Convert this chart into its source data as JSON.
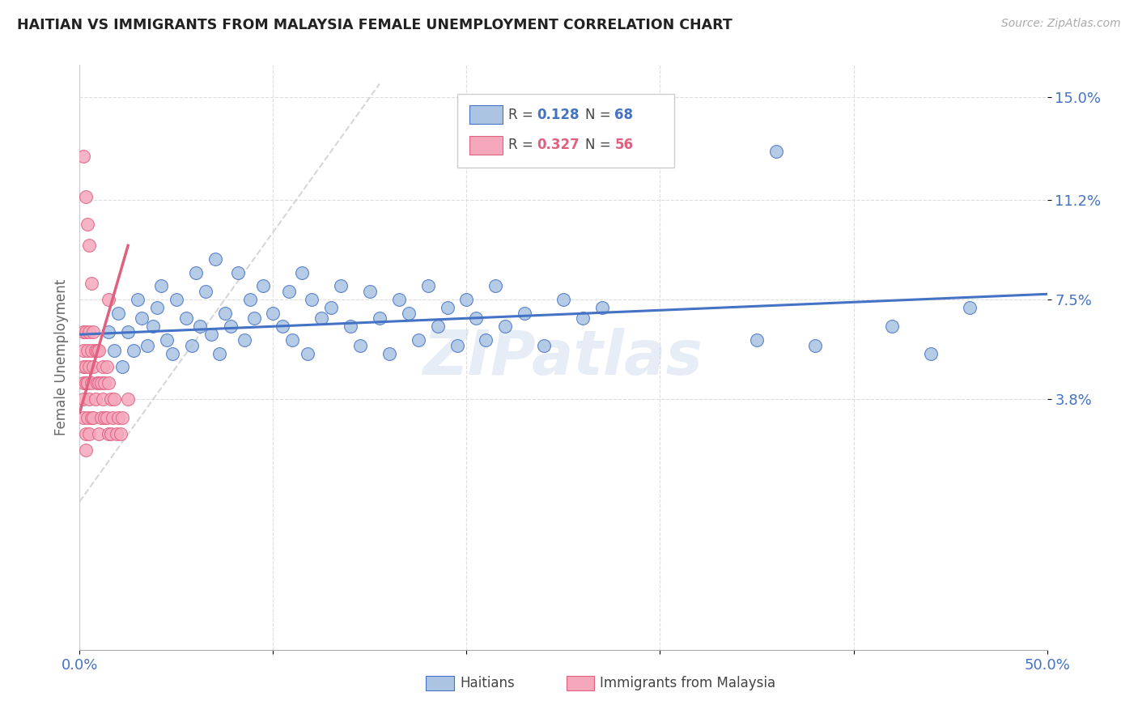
{
  "title": "HAITIAN VS IMMIGRANTS FROM MALAYSIA FEMALE UNEMPLOYMENT CORRELATION CHART",
  "source": "Source: ZipAtlas.com",
  "ylabel": "Female Unemployment",
  "xmin": 0.0,
  "xmax": 0.5,
  "ymin": -0.055,
  "ymax": 0.162,
  "legend_blue_r": "0.128",
  "legend_blue_n": "68",
  "legend_pink_r": "0.327",
  "legend_pink_n": "56",
  "watermark": "ZIPatlas",
  "blue_color": "#aac4e2",
  "pink_color": "#f5a8bc",
  "blue_line_color": "#4472c4",
  "pink_line_color": "#e06080",
  "diag_line_color": "#cccccc",
  "grid_color": "#dddddd",
  "title_color": "#222222",
  "axis_label_color": "#4472c4",
  "ytick_vals": [
    0.038,
    0.075,
    0.112,
    0.15
  ],
  "ytick_labels": [
    "3.8%",
    "7.5%",
    "11.2%",
    "15.0%"
  ],
  "xtick_vals": [
    0.0,
    0.1,
    0.2,
    0.3,
    0.4,
    0.5
  ],
  "xtick_labels": [
    "0.0%",
    "",
    "",
    "",
    "",
    "50.0%"
  ],
  "blue_scatter_x": [
    0.015,
    0.018,
    0.02,
    0.022,
    0.025,
    0.028,
    0.03,
    0.032,
    0.035,
    0.038,
    0.04,
    0.042,
    0.045,
    0.048,
    0.05,
    0.055,
    0.058,
    0.06,
    0.062,
    0.065,
    0.068,
    0.07,
    0.072,
    0.075,
    0.078,
    0.082,
    0.085,
    0.088,
    0.09,
    0.095,
    0.1,
    0.105,
    0.108,
    0.11,
    0.115,
    0.118,
    0.12,
    0.125,
    0.13,
    0.135,
    0.14,
    0.145,
    0.15,
    0.155,
    0.16,
    0.165,
    0.17,
    0.175,
    0.18,
    0.185,
    0.19,
    0.195,
    0.2,
    0.205,
    0.21,
    0.215,
    0.22,
    0.23,
    0.24,
    0.25,
    0.26,
    0.27,
    0.35,
    0.38,
    0.42,
    0.44,
    0.46,
    0.36
  ],
  "blue_scatter_y": [
    0.063,
    0.056,
    0.07,
    0.05,
    0.063,
    0.056,
    0.075,
    0.068,
    0.058,
    0.065,
    0.072,
    0.08,
    0.06,
    0.055,
    0.075,
    0.068,
    0.058,
    0.085,
    0.065,
    0.078,
    0.062,
    0.09,
    0.055,
    0.07,
    0.065,
    0.085,
    0.06,
    0.075,
    0.068,
    0.08,
    0.07,
    0.065,
    0.078,
    0.06,
    0.085,
    0.055,
    0.075,
    0.068,
    0.072,
    0.08,
    0.065,
    0.058,
    0.078,
    0.068,
    0.055,
    0.075,
    0.07,
    0.06,
    0.08,
    0.065,
    0.072,
    0.058,
    0.075,
    0.068,
    0.06,
    0.08,
    0.065,
    0.07,
    0.058,
    0.075,
    0.068,
    0.072,
    0.06,
    0.058,
    0.065,
    0.055,
    0.072,
    0.13
  ],
  "pink_scatter_x": [
    0.002,
    0.002,
    0.002,
    0.002,
    0.002,
    0.002,
    0.003,
    0.003,
    0.003,
    0.003,
    0.003,
    0.004,
    0.004,
    0.004,
    0.005,
    0.005,
    0.005,
    0.005,
    0.006,
    0.006,
    0.006,
    0.007,
    0.007,
    0.007,
    0.008,
    0.008,
    0.009,
    0.009,
    0.01,
    0.01,
    0.01,
    0.011,
    0.011,
    0.012,
    0.012,
    0.013,
    0.013,
    0.014,
    0.014,
    0.015,
    0.015,
    0.016,
    0.016,
    0.017,
    0.018,
    0.019,
    0.02,
    0.021,
    0.022,
    0.025,
    0.002,
    0.003,
    0.004,
    0.005,
    0.006,
    0.015
  ],
  "pink_scatter_y": [
    0.063,
    0.056,
    0.05,
    0.044,
    0.038,
    0.031,
    0.063,
    0.05,
    0.044,
    0.025,
    0.019,
    0.056,
    0.044,
    0.031,
    0.063,
    0.05,
    0.038,
    0.025,
    0.056,
    0.044,
    0.031,
    0.063,
    0.05,
    0.031,
    0.056,
    0.038,
    0.056,
    0.044,
    0.056,
    0.044,
    0.025,
    0.044,
    0.031,
    0.05,
    0.038,
    0.044,
    0.031,
    0.05,
    0.031,
    0.044,
    0.025,
    0.038,
    0.025,
    0.031,
    0.038,
    0.025,
    0.031,
    0.025,
    0.031,
    0.038,
    0.128,
    0.113,
    0.103,
    0.095,
    0.081,
    0.075
  ],
  "blue_trend_x": [
    0.0,
    0.5
  ],
  "blue_trend_y": [
    0.062,
    0.077
  ],
  "pink_trend_x": [
    0.0,
    0.025
  ],
  "pink_trend_y": [
    0.033,
    0.095
  ]
}
